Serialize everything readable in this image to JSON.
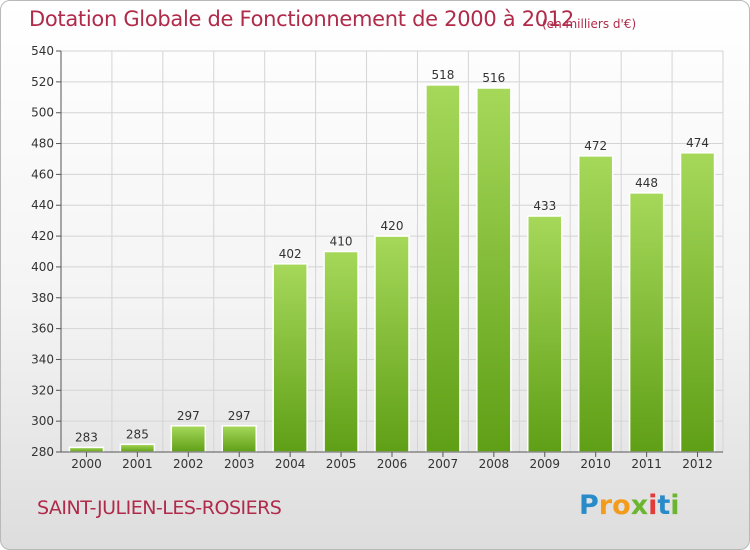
{
  "header": {
    "title": "Dotation Globale de Fonctionnement de 2000 à 2012",
    "unit": "(en milliers d'€)"
  },
  "footer": {
    "commune": "SAINT-JULIEN-LES-ROSIERS",
    "logo_letters": [
      "P",
      "r",
      "o",
      "x",
      "i",
      "t",
      "i"
    ],
    "logo_colors": [
      "#2a8bc9",
      "#f39c1b",
      "#f39c1b",
      "#6cb52e",
      "#e23b3b",
      "#2a8bc9",
      "#6cb52e"
    ]
  },
  "colors": {
    "title": "#b02a4a",
    "bar_top": "#a6d85a",
    "bar_bottom": "#5f9f16",
    "grid": "#d4d4d4"
  },
  "chart_data": {
    "type": "bar",
    "categories": [
      "2000",
      "2001",
      "2002",
      "2003",
      "2004",
      "2005",
      "2006",
      "2007",
      "2008",
      "2009",
      "2010",
      "2011",
      "2012"
    ],
    "values": [
      283,
      285,
      297,
      297,
      402,
      410,
      420,
      518,
      516,
      433,
      472,
      448,
      474
    ],
    "value_labels": [
      "283",
      "285",
      "297",
      "297",
      "402",
      "410",
      "420",
      "518",
      "516",
      "433",
      "472",
      "448",
      "474"
    ],
    "yticks": [
      "280",
      "300",
      "320",
      "340",
      "360",
      "380",
      "400",
      "420",
      "440",
      "460",
      "480",
      "500",
      "520",
      "540"
    ],
    "ylim": [
      280,
      540
    ],
    "grid": true,
    "legend": "none"
  }
}
